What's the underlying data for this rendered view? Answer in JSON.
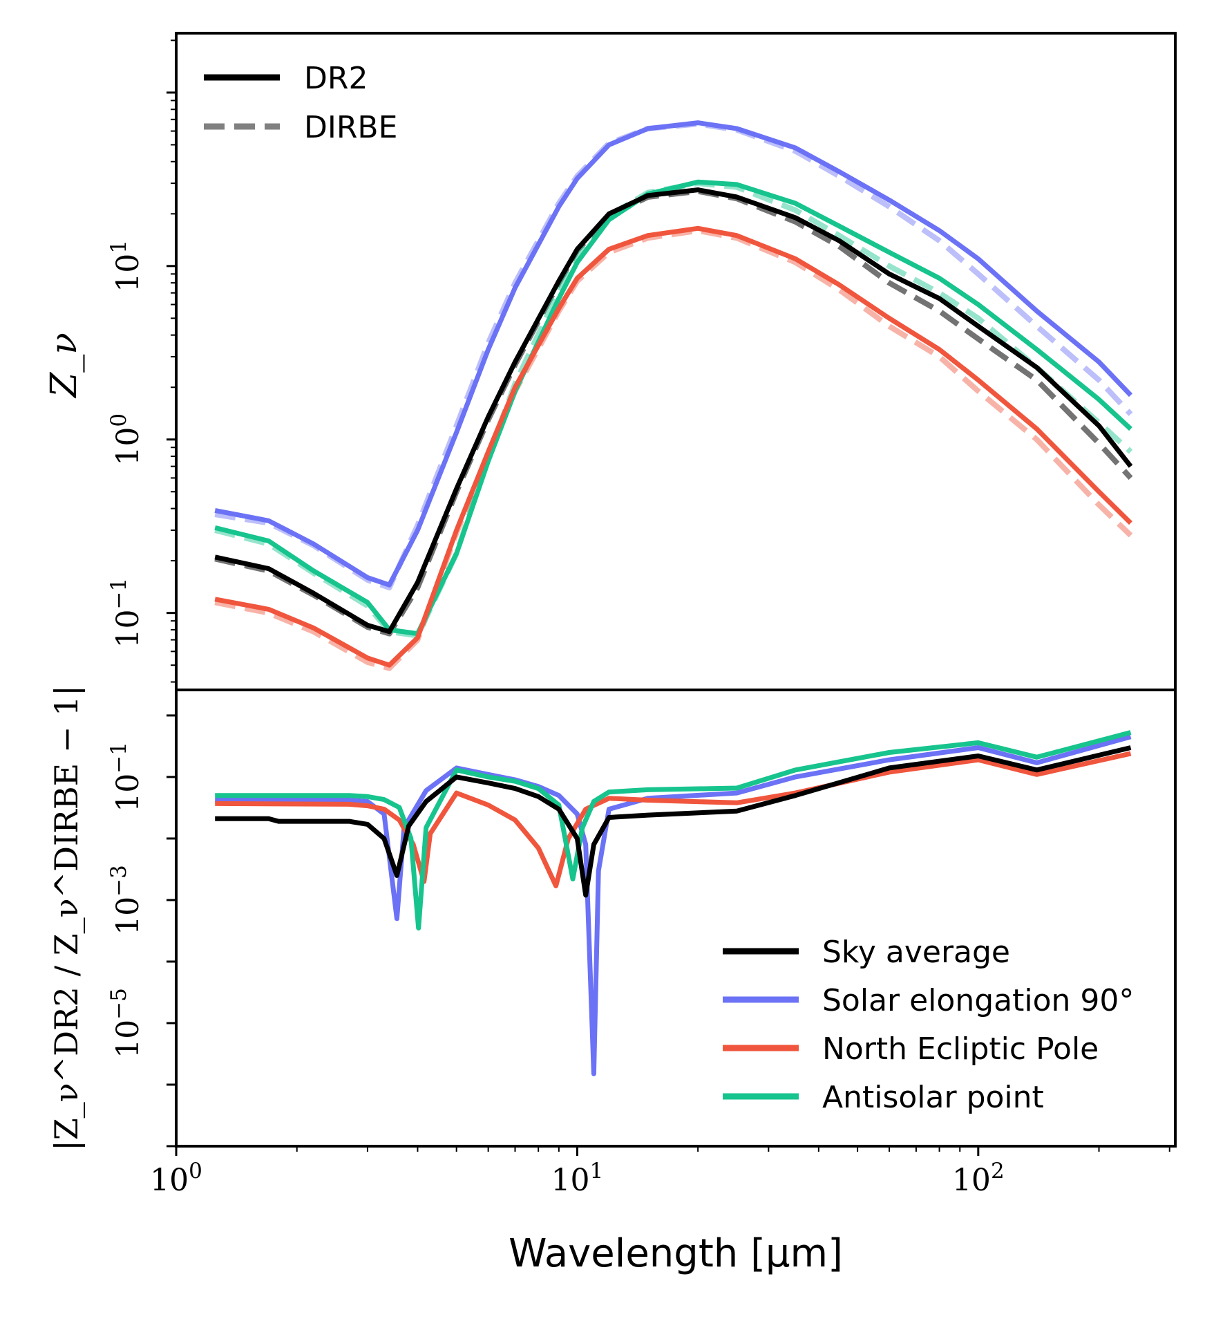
{
  "chart_data": [
    {
      "type": "line",
      "panel": "top",
      "ylabel": "Z_ν",
      "yscale": "log",
      "xscale": "log",
      "ylim": [
        0.036,
        220
      ],
      "yticks": [
        {
          "value": 0.1,
          "base": "10",
          "exp": "−1"
        },
        {
          "value": 1,
          "base": "10",
          "exp": "0"
        },
        {
          "value": 10,
          "base": "10",
          "exp": "1"
        }
      ],
      "style_legend": {
        "placement": "upper-left",
        "entries": [
          {
            "label": "DR2",
            "style": "solid"
          },
          {
            "label": "DIRBE",
            "style": "dashed"
          }
        ]
      },
      "x": [
        1.25,
        1.7,
        2.2,
        3.0,
        3.4,
        4.0,
        5.0,
        6.0,
        7.0,
        9.0,
        10.0,
        12.0,
        15.0,
        20.0,
        25.0,
        35.0,
        45.0,
        60.0,
        80.0,
        100.0,
        140.0,
        200.0,
        240.0
      ],
      "series": [
        {
          "name": "Sky average",
          "color": "#000000",
          "dr2": [
            0.21,
            0.18,
            0.13,
            0.085,
            0.078,
            0.15,
            0.52,
            1.35,
            2.8,
            8.2,
            12.5,
            20,
            25.5,
            27.5,
            25,
            19,
            14,
            9,
            6.5,
            4.5,
            2.6,
            1.2,
            0.7
          ],
          "dirbe": [
            0.205,
            0.175,
            0.127,
            0.083,
            0.076,
            0.14,
            0.5,
            1.3,
            2.7,
            8.0,
            12.3,
            19.5,
            25,
            27,
            24.5,
            18,
            13,
            8,
            5.5,
            3.8,
            2.2,
            0.95,
            0.6
          ]
        },
        {
          "name": "Solar elongation 90°",
          "color": "#6b72f5",
          "dr2": [
            0.39,
            0.34,
            0.25,
            0.16,
            0.145,
            0.3,
            1.1,
            3.3,
            7.5,
            22,
            32,
            50,
            62,
            67,
            62,
            48,
            35,
            24,
            16,
            11,
            5.5,
            2.8,
            1.8
          ],
          "dirbe": [
            0.37,
            0.33,
            0.245,
            0.155,
            0.14,
            0.32,
            1.2,
            3.6,
            8.0,
            23,
            33,
            51,
            62,
            66,
            61,
            46,
            33,
            22,
            14,
            9,
            4.5,
            2.2,
            1.4
          ]
        },
        {
          "name": "North Ecliptic Pole",
          "color": "#f0563d",
          "dr2": [
            0.12,
            0.105,
            0.082,
            0.055,
            0.05,
            0.072,
            0.3,
            0.85,
            2.0,
            5.7,
            8.5,
            12.5,
            15,
            16.5,
            15,
            11,
            7.8,
            5,
            3.3,
            2.2,
            1.15,
            0.5,
            0.33
          ],
          "dirbe": [
            0.115,
            0.1,
            0.078,
            0.052,
            0.048,
            0.07,
            0.29,
            0.82,
            1.9,
            5.5,
            8.2,
            12,
            14.5,
            16,
            14.5,
            10.5,
            7.3,
            4.5,
            3.0,
            1.9,
            1.0,
            0.42,
            0.28
          ]
        },
        {
          "name": "Antisolar point",
          "color": "#17c48d",
          "dr2": [
            0.31,
            0.26,
            0.175,
            0.115,
            0.08,
            0.076,
            0.22,
            0.75,
            1.9,
            6.5,
            10.5,
            18.5,
            26,
            30.5,
            29.5,
            23,
            17,
            12,
            8.5,
            6.0,
            3.3,
            1.7,
            1.15
          ],
          "dirbe": [
            0.3,
            0.25,
            0.17,
            0.11,
            0.078,
            0.074,
            0.22,
            0.8,
            2.1,
            7.2,
            11.5,
            19.5,
            26.5,
            30,
            28.5,
            21,
            15,
            10,
            7.0,
            5.0,
            2.6,
            1.25,
            0.85
          ]
        }
      ]
    },
    {
      "type": "line",
      "panel": "bottom",
      "ylabel": "|Z_ν^DR2 / Z_ν^DIRBE − 1|",
      "yscale": "log",
      "xscale": "log",
      "xlabel": "Wavelength [μm]",
      "xlim": [
        1.0,
        310
      ],
      "ylim": [
        1e-07,
        2.6
      ],
      "xticks": [
        {
          "value": 1,
          "base": "10",
          "exp": "0"
        },
        {
          "value": 10,
          "base": "10",
          "exp": "1"
        },
        {
          "value": 100,
          "base": "10",
          "exp": "2"
        }
      ],
      "yticks": [
        {
          "value": 0.1,
          "base": "10",
          "exp": "−1"
        },
        {
          "value": 0.001,
          "base": "10",
          "exp": "−3"
        },
        {
          "value": 1e-05,
          "base": "10",
          "exp": "−5"
        }
      ],
      "legend": {
        "placement": "lower-right"
      },
      "series": [
        {
          "name": "Sky average",
          "color": "#000000",
          "x": [
            1.25,
            1.7,
            1.8,
            2.7,
            3.0,
            3.3,
            3.55,
            3.8,
            4.2,
            5.0,
            6.0,
            7.0,
            8.0,
            9.0,
            10.0,
            10.5,
            11.0,
            12.0,
            15.0,
            25.0,
            35.0,
            60.0,
            100.0,
            140.0,
            240.0
          ],
          "y": [
            0.021,
            0.021,
            0.019,
            0.019,
            0.017,
            0.01,
            0.0025,
            0.016,
            0.04,
            0.1,
            0.08,
            0.065,
            0.048,
            0.03,
            0.01,
            0.0012,
            0.008,
            0.022,
            0.024,
            0.028,
            0.05,
            0.14,
            0.22,
            0.13,
            0.3
          ]
        },
        {
          "name": "Solar elongation 90°",
          "color": "#6b72f5",
          "x": [
            1.25,
            2.7,
            3.0,
            3.3,
            3.55,
            3.7,
            4.2,
            5.0,
            6.0,
            7.0,
            8.0,
            9.0,
            10.0,
            10.5,
            11.0,
            11.3,
            12.0,
            15.0,
            25.0,
            35.0,
            60.0,
            100.0,
            140.0,
            240.0
          ],
          "y": [
            0.042,
            0.042,
            0.04,
            0.025,
            0.0005,
            0.015,
            0.06,
            0.14,
            0.11,
            0.09,
            0.07,
            0.05,
            0.025,
            0.008,
            1.5e-06,
            0.003,
            0.03,
            0.045,
            0.055,
            0.1,
            0.19,
            0.3,
            0.17,
            0.45
          ]
        },
        {
          "name": "North Ecliptic Pole",
          "color": "#f0563d",
          "x": [
            1.25,
            2.7,
            3.0,
            3.3,
            3.6,
            3.9,
            4.15,
            4.3,
            5.0,
            6.0,
            7.0,
            8.0,
            8.85,
            9.5,
            10.5,
            12.0,
            15.0,
            25.0,
            35.0,
            60.0,
            100.0,
            140.0,
            240.0
          ],
          "y": [
            0.037,
            0.036,
            0.034,
            0.03,
            0.02,
            0.008,
            0.002,
            0.012,
            0.055,
            0.035,
            0.02,
            0.007,
            0.0017,
            0.01,
            0.03,
            0.045,
            0.042,
            0.038,
            0.055,
            0.12,
            0.19,
            0.11,
            0.24
          ]
        },
        {
          "name": "Antisolar point",
          "color": "#17c48d",
          "x": [
            1.25,
            2.7,
            3.0,
            3.3,
            3.6,
            3.85,
            4.02,
            4.2,
            5.0,
            6.0,
            7.0,
            8.0,
            9.0,
            9.75,
            10.3,
            11.0,
            12.0,
            15.0,
            25.0,
            35.0,
            60.0,
            100.0,
            140.0,
            240.0
          ],
          "y": [
            0.05,
            0.05,
            0.048,
            0.043,
            0.032,
            0.01,
            0.00035,
            0.015,
            0.13,
            0.1,
            0.085,
            0.065,
            0.035,
            0.0022,
            0.015,
            0.04,
            0.057,
            0.062,
            0.066,
            0.13,
            0.25,
            0.36,
            0.21,
            0.53
          ]
        }
      ]
    }
  ]
}
